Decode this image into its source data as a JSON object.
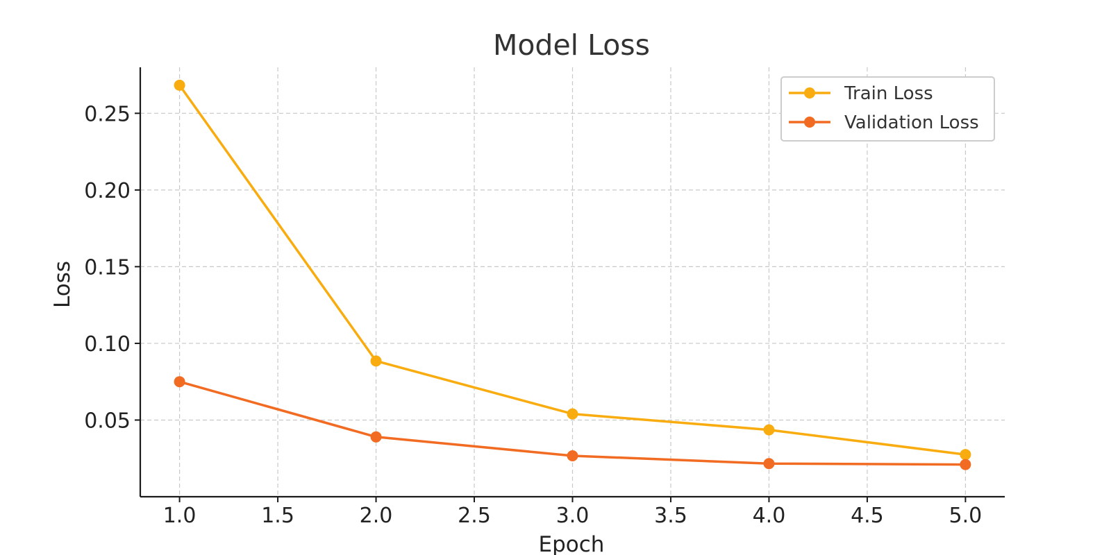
{
  "chart_data": {
    "type": "line",
    "title": "Model Loss",
    "xlabel": "Epoch",
    "ylabel": "Loss",
    "xlim": [
      0.8,
      5.2
    ],
    "ylim": [
      0.0,
      0.28
    ],
    "xticks": [
      "1.0",
      "1.5",
      "2.0",
      "2.5",
      "3.0",
      "3.5",
      "4.0",
      "4.5",
      "5.0"
    ],
    "yticks": [
      "0.05",
      "0.10",
      "0.15",
      "0.20",
      "0.25"
    ],
    "grid": true,
    "legend_position": "top-right",
    "x": [
      1,
      2,
      3,
      4,
      5
    ],
    "series": [
      {
        "name": "Train Loss",
        "color": "#F9AC0F",
        "marker": "circle",
        "values": [
          0.2683,
          0.0885,
          0.054,
          0.0436,
          0.0275
        ]
      },
      {
        "name": "Validation Loss",
        "color": "#F26B22",
        "marker": "circle",
        "values": [
          0.075,
          0.039,
          0.0267,
          0.0216,
          0.021
        ]
      }
    ]
  }
}
